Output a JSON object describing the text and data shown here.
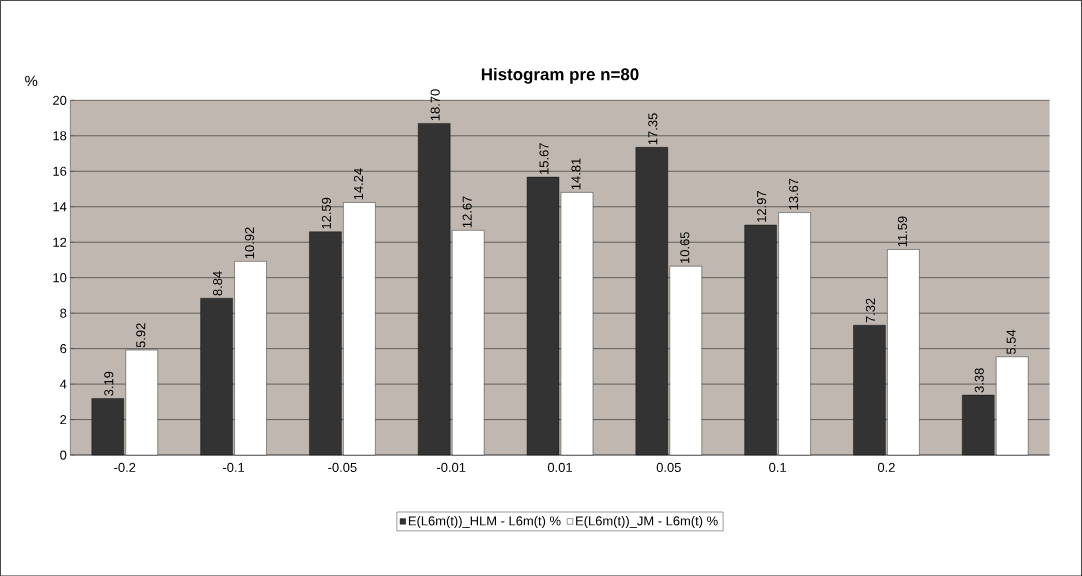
{
  "chart_data": {
    "type": "bar",
    "title": "Histogram pre n=80",
    "ylabel": "%",
    "categories": [
      "-0.2",
      "-0.1",
      "-0.05",
      "-0.01",
      "0.01",
      "0.05",
      "0.1",
      "0.2",
      null
    ],
    "series": [
      {
        "name": "E(L6m(t))_HLM - L6m(t) %",
        "color": "#333333",
        "values": [
          3.19,
          8.84,
          12.59,
          18.7,
          15.67,
          17.35,
          12.97,
          7.32,
          3.38
        ],
        "value_labels": [
          "3.19",
          "8.84",
          "12.59",
          "18.70",
          "15.67",
          "17.35",
          "12.97",
          "7.32",
          "3.38"
        ]
      },
      {
        "name": "E(L6m(t))_JM - L6m(t) %",
        "color": "#ffffff",
        "values": [
          5.92,
          10.92,
          14.24,
          12.67,
          14.81,
          10.65,
          13.67,
          11.59,
          5.54
        ],
        "value_labels": [
          "5.92",
          "10.92",
          "14.24",
          "12.67",
          "14.81",
          "10.65",
          "13.67",
          "11.59",
          "5.54"
        ]
      }
    ],
    "ylim": [
      0,
      20
    ],
    "yticks": [
      0,
      2,
      4,
      6,
      8,
      10,
      12,
      14,
      16,
      18,
      20
    ],
    "grid": "y",
    "legend": "bottom"
  }
}
